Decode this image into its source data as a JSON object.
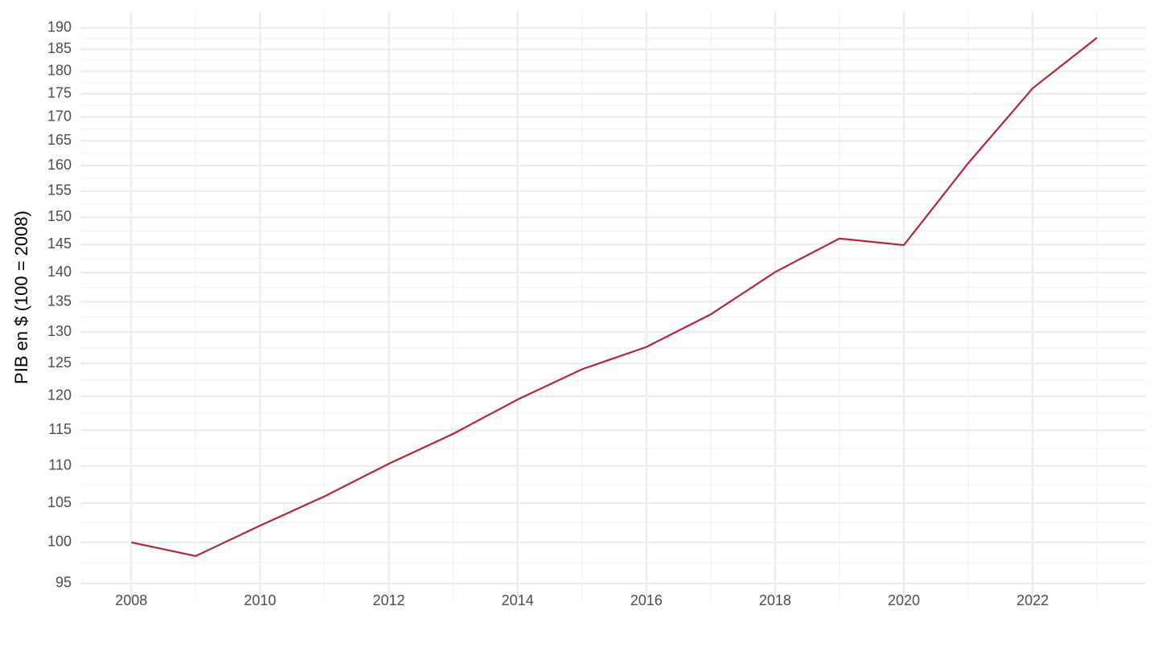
{
  "chart_data": {
    "type": "line",
    "y_label": "PIB en $ (100 = 2008)",
    "x": [
      2008,
      2009,
      2010,
      2011,
      2012,
      2013,
      2014,
      2015,
      2016,
      2017,
      2018,
      2019,
      2020,
      2021,
      2022,
      2023
    ],
    "series": [
      {
        "color": "#b5263b",
        "values": [
          100.0,
          98.3,
          102.1,
          105.9,
          110.3,
          114.5,
          119.5,
          124.1,
          127.6,
          132.9,
          140.1,
          146.1,
          144.9,
          160.5,
          176.2,
          187.7
        ]
      }
    ],
    "xlim": [
      2007.21,
      2023.76
    ],
    "xticks": [
      2008,
      2010,
      2012,
      2014,
      2016,
      2018,
      2020,
      2022
    ],
    "ylim": [
      93.2,
      193.8
    ],
    "yticks": [
      95,
      100,
      105,
      110,
      115,
      120,
      125,
      130,
      135,
      140,
      145,
      150,
      155,
      160,
      165,
      170,
      175,
      180,
      185,
      190
    ],
    "y_log": true,
    "grid": true
  }
}
